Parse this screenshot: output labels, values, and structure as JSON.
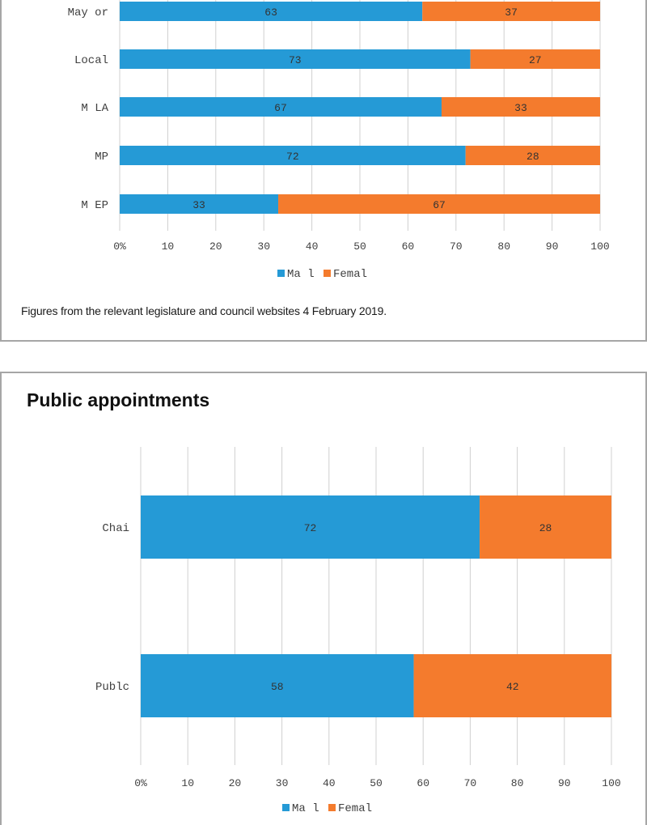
{
  "note": "Figures from the relevant legislature and council websites 4 February 2019.",
  "section_title": "Public appointments",
  "colors": {
    "male": "#259ad6",
    "female": "#f47b2d",
    "grid": "#d0d0d0",
    "text": "#404040"
  },
  "chart_data": [
    {
      "type": "bar",
      "orientation": "horizontal",
      "stacked": true,
      "categories": [
        "May or",
        "Local",
        "M LA",
        "MP",
        "M EP"
      ],
      "series": [
        {
          "name": "Ma l",
          "values": [
            63,
            73,
            67,
            72,
            33
          ]
        },
        {
          "name": "Femal",
          "values": [
            37,
            27,
            33,
            28,
            67
          ]
        }
      ],
      "xlim": [
        0,
        100
      ],
      "tick_labels": [
        "0%",
        "10",
        "20",
        "30",
        "40",
        "50",
        "60",
        "70",
        "80",
        "90",
        "100"
      ],
      "grid": true,
      "legend": "bottom"
    },
    {
      "type": "bar",
      "orientation": "horizontal",
      "stacked": true,
      "categories": [
        "Chai",
        "Publc"
      ],
      "series": [
        {
          "name": "Ma l",
          "values": [
            72,
            58
          ]
        },
        {
          "name": "Femal",
          "values": [
            28,
            42
          ]
        }
      ],
      "xlim": [
        0,
        100
      ],
      "tick_labels": [
        "0%",
        "10",
        "20",
        "30",
        "40",
        "50",
        "60",
        "70",
        "80",
        "90",
        "100"
      ],
      "grid": true,
      "legend": "bottom"
    }
  ]
}
